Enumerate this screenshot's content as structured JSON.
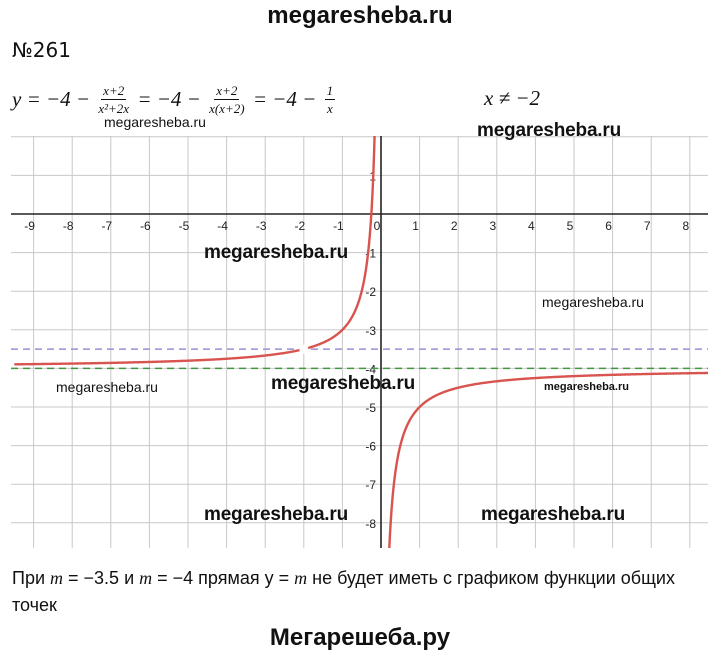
{
  "header": {
    "site": "megaresheba.ru"
  },
  "problem": {
    "number": "№261"
  },
  "formula": {
    "p1": "y = −4 − ",
    "f1_num": "x+2",
    "f1_den": "x²+2x",
    "p2": " = −4 − ",
    "f2_num": "x+2",
    "f2_den": "x(x+2)",
    "p3": " = −4 − ",
    "f3_num": "1",
    "f3_den": "x",
    "condition": "x ≠ −2"
  },
  "watermarks": {
    "w1": "megaresheba.ru",
    "w2": "megaresheba.ru",
    "w3": "megaresheba.ru",
    "w4": "megaresheba.ru",
    "w5": "megaresheba.ru",
    "w6": "megaresheba.ru",
    "w7": "megaresheba.ru",
    "w8": "megaresheba.ru",
    "w9": "megaresheba.ru"
  },
  "answer": {
    "t1": "При ",
    "m1": "m",
    "t2": " = −3.5 и ",
    "m2": "m",
    "t3": " = −4 прямая y = ",
    "m3": "m",
    "t4": " не будет иметь с графиком функции общих точек"
  },
  "footer": {
    "site": "Мегарешеба.ру"
  },
  "chart_data": {
    "type": "line",
    "xlim": [
      -9.5,
      8.5
    ],
    "ylim": [
      -8.6,
      2
    ],
    "grid": true,
    "x_ticks": [
      -9,
      -8,
      -7,
      -6,
      -5,
      -4,
      -3,
      -2,
      -1,
      0,
      1,
      2,
      3,
      4,
      5,
      6,
      7,
      8
    ],
    "y_ticks": [
      1,
      -1,
      -2,
      -3,
      -4,
      -5,
      -6,
      -7,
      -8
    ],
    "series": [
      {
        "function": "y = -4 - 1/x",
        "excluded_x": -2,
        "color": "#d9534f"
      }
    ],
    "horizontal_lines": [
      {
        "y": -3.5,
        "style": "dashed",
        "color": "#9b8fd6"
      },
      {
        "y": -4,
        "style": "dashed",
        "color": "#3f9a3f"
      }
    ],
    "hole": {
      "x": -2,
      "y": -3.5
    }
  }
}
